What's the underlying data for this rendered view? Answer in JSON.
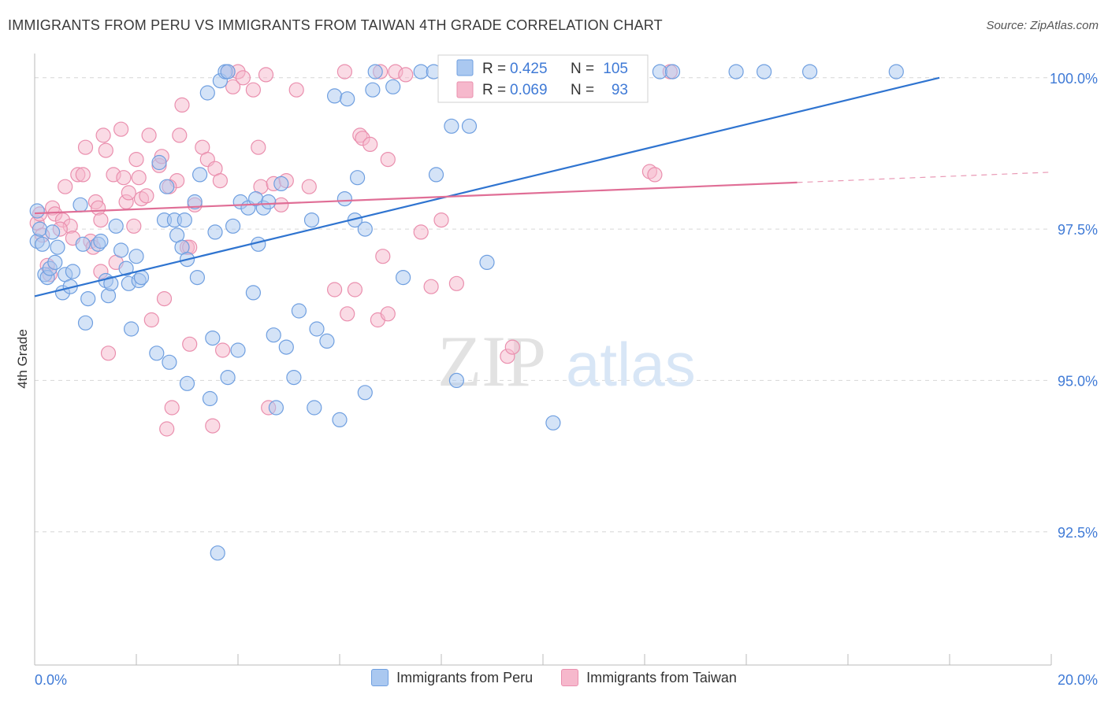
{
  "header": {
    "title": "IMMIGRANTS FROM PERU VS IMMIGRANTS FROM TAIWAN 4TH GRADE CORRELATION CHART",
    "source": "Source: ZipAtlas.com"
  },
  "watermark": {
    "zip": "ZIP",
    "atlas": "atlas"
  },
  "stats": {
    "peru": {
      "r_label": "R =",
      "r_value": "0.425",
      "n_label": "N =",
      "n_value": "105"
    },
    "taiwan": {
      "r_label": "R =",
      "r_value": "0.069",
      "n_label": "N =",
      "n_value": "93"
    }
  },
  "legend": {
    "peru": "Immigrants from Peru",
    "taiwan": "Immigrants from Taiwan"
  },
  "colors": {
    "peru_fill": "#aac8f0",
    "peru_stroke": "#6f9fe0",
    "peru_line": "#2f74d0",
    "taiwan_fill": "#f6b8cc",
    "taiwan_stroke": "#ea8fae",
    "taiwan_line": "#e06e96",
    "axis_text": "#3f7ad6",
    "grid": "#d6d6d6"
  },
  "chart_data": {
    "type": "scatter",
    "title": "IMMIGRANTS FROM PERU VS IMMIGRANTS FROM TAIWAN 4TH GRADE CORRELATION CHART",
    "xlabel": "",
    "ylabel": "4th Grade",
    "xlim": [
      0,
      20
    ],
    "ylim": [
      90.3,
      100.4
    ],
    "x_tick_labels": [
      "0.0%",
      "20.0%"
    ],
    "y_ticks": [
      {
        "value": 92.5,
        "label": "92.5%"
      },
      {
        "value": 95.0,
        "label": "95.0%"
      },
      {
        "value": 97.5,
        "label": "97.5%"
      },
      {
        "value": 100.0,
        "label": "100.0%"
      }
    ],
    "grid": "horizontal dashed",
    "legend_position": "bottom",
    "series": [
      {
        "name": "Immigrants from Peru",
        "trend": {
          "x": [
            0.0,
            17.8
          ],
          "y": [
            96.39,
            100.0
          ]
        },
        "points": [
          [
            0.05,
            97.8
          ],
          [
            0.05,
            97.3
          ],
          [
            0.1,
            97.5
          ],
          [
            0.15,
            97.25
          ],
          [
            0.2,
            96.75
          ],
          [
            0.25,
            96.7
          ],
          [
            0.3,
            96.85
          ],
          [
            0.35,
            97.45
          ],
          [
            0.4,
            96.95
          ],
          [
            0.45,
            97.2
          ],
          [
            0.55,
            96.45
          ],
          [
            0.6,
            96.75
          ],
          [
            0.7,
            96.55
          ],
          [
            0.75,
            96.8
          ],
          [
            0.95,
            97.25
          ],
          [
            0.9,
            97.9
          ],
          [
            1.05,
            96.35
          ],
          [
            1.0,
            95.95
          ],
          [
            1.25,
            97.25
          ],
          [
            1.3,
            97.3
          ],
          [
            1.4,
            96.65
          ],
          [
            1.45,
            96.4
          ],
          [
            1.5,
            96.6
          ],
          [
            1.6,
            97.55
          ],
          [
            1.7,
            97.15
          ],
          [
            1.8,
            96.85
          ],
          [
            1.85,
            96.6
          ],
          [
            1.9,
            95.85
          ],
          [
            2.0,
            97.05
          ],
          [
            2.05,
            96.65
          ],
          [
            2.1,
            96.7
          ],
          [
            2.4,
            95.45
          ],
          [
            2.45,
            98.6
          ],
          [
            2.55,
            97.65
          ],
          [
            2.6,
            98.2
          ],
          [
            2.65,
            95.3
          ],
          [
            2.75,
            97.65
          ],
          [
            2.8,
            97.4
          ],
          [
            2.9,
            97.2
          ],
          [
            3.0,
            97.0
          ],
          [
            2.95,
            97.65
          ],
          [
            3.0,
            94.95
          ],
          [
            3.15,
            97.95
          ],
          [
            3.2,
            96.7
          ],
          [
            3.25,
            98.4
          ],
          [
            3.4,
            99.75
          ],
          [
            3.45,
            94.7
          ],
          [
            3.5,
            95.7
          ],
          [
            3.55,
            97.45
          ],
          [
            3.6,
            92.15
          ],
          [
            3.65,
            99.95
          ],
          [
            3.75,
            100.1
          ],
          [
            3.8,
            95.05
          ],
          [
            3.9,
            97.55
          ],
          [
            4.0,
            95.5
          ],
          [
            4.05,
            97.95
          ],
          [
            4.2,
            97.85
          ],
          [
            4.3,
            96.45
          ],
          [
            4.35,
            98.0
          ],
          [
            4.5,
            97.85
          ],
          [
            4.4,
            97.25
          ],
          [
            4.6,
            97.95
          ],
          [
            4.7,
            95.75
          ],
          [
            4.75,
            94.55
          ],
          [
            4.85,
            98.25
          ],
          [
            4.95,
            95.55
          ],
          [
            5.1,
            95.05
          ],
          [
            5.2,
            96.15
          ],
          [
            5.45,
            97.65
          ],
          [
            5.5,
            94.55
          ],
          [
            5.55,
            95.85
          ],
          [
            5.75,
            95.65
          ],
          [
            5.9,
            99.7
          ],
          [
            6.0,
            94.35
          ],
          [
            6.1,
            98.0
          ],
          [
            6.15,
            99.65
          ],
          [
            6.3,
            97.65
          ],
          [
            6.35,
            98.35
          ],
          [
            6.5,
            97.5
          ],
          [
            6.5,
            94.8
          ],
          [
            6.65,
            99.8
          ],
          [
            6.7,
            100.1
          ],
          [
            7.05,
            99.85
          ],
          [
            7.25,
            96.7
          ],
          [
            7.6,
            100.1
          ],
          [
            7.85,
            100.1
          ],
          [
            7.9,
            98.4
          ],
          [
            8.2,
            99.2
          ],
          [
            8.3,
            95.0
          ],
          [
            8.55,
            99.2
          ],
          [
            8.9,
            96.95
          ],
          [
            9.1,
            100.1
          ],
          [
            10.05,
            100.1
          ],
          [
            10.3,
            100.1
          ],
          [
            10.5,
            100.1
          ],
          [
            9.5,
            100.1
          ],
          [
            11.15,
            100.1
          ],
          [
            12.3,
            100.1
          ],
          [
            12.55,
            100.1
          ],
          [
            13.8,
            100.1
          ],
          [
            14.35,
            100.1
          ],
          [
            15.25,
            100.1
          ],
          [
            16.95,
            100.1
          ],
          [
            10.2,
            94.3
          ],
          [
            3.8,
            100.1
          ]
        ]
      },
      {
        "name": "Immigrants from Taiwan",
        "trend": {
          "x": [
            0.0,
            15.0
          ],
          "y": [
            97.76,
            98.27
          ]
        },
        "trend_dashed": {
          "x": [
            15.0,
            20.0
          ],
          "y": [
            98.27,
            98.44
          ]
        },
        "points": [
          [
            0.05,
            97.6
          ],
          [
            0.1,
            97.75
          ],
          [
            0.15,
            97.4
          ],
          [
            0.25,
            96.9
          ],
          [
            0.3,
            96.75
          ],
          [
            0.35,
            97.85
          ],
          [
            0.4,
            97.75
          ],
          [
            0.55,
            97.65
          ],
          [
            0.6,
            98.2
          ],
          [
            0.7,
            97.55
          ],
          [
            0.75,
            97.35
          ],
          [
            0.85,
            98.4
          ],
          [
            0.95,
            98.4
          ],
          [
            1.0,
            98.85
          ],
          [
            1.1,
            97.3
          ],
          [
            1.15,
            97.2
          ],
          [
            1.2,
            97.95
          ],
          [
            1.25,
            97.85
          ],
          [
            1.3,
            97.65
          ],
          [
            1.35,
            99.05
          ],
          [
            1.3,
            96.8
          ],
          [
            1.4,
            98.8
          ],
          [
            1.45,
            95.45
          ],
          [
            1.55,
            98.4
          ],
          [
            1.6,
            96.95
          ],
          [
            1.7,
            99.15
          ],
          [
            1.75,
            98.35
          ],
          [
            1.8,
            97.95
          ],
          [
            1.85,
            98.1
          ],
          [
            1.95,
            97.55
          ],
          [
            2.0,
            98.65
          ],
          [
            2.05,
            98.35
          ],
          [
            2.1,
            98.0
          ],
          [
            2.2,
            98.05
          ],
          [
            2.25,
            99.05
          ],
          [
            2.3,
            96.0
          ],
          [
            2.45,
            98.55
          ],
          [
            2.5,
            98.7
          ],
          [
            2.55,
            96.35
          ],
          [
            2.6,
            94.2
          ],
          [
            2.7,
            94.55
          ],
          [
            2.8,
            98.3
          ],
          [
            2.85,
            99.05
          ],
          [
            2.9,
            99.55
          ],
          [
            3.0,
            97.2
          ],
          [
            3.05,
            95.6
          ],
          [
            3.15,
            97.9
          ],
          [
            3.3,
            98.85
          ],
          [
            3.4,
            98.65
          ],
          [
            3.5,
            94.25
          ],
          [
            3.55,
            98.5
          ],
          [
            3.65,
            98.3
          ],
          [
            3.7,
            95.5
          ],
          [
            3.8,
            100.1
          ],
          [
            3.9,
            99.85
          ],
          [
            4.0,
            100.1
          ],
          [
            4.1,
            100.0
          ],
          [
            4.3,
            99.8
          ],
          [
            4.4,
            98.85
          ],
          [
            4.45,
            98.2
          ],
          [
            4.55,
            100.05
          ],
          [
            4.6,
            94.55
          ],
          [
            4.7,
            98.25
          ],
          [
            4.85,
            97.9
          ],
          [
            4.95,
            98.3
          ],
          [
            5.15,
            99.8
          ],
          [
            5.4,
            98.2
          ],
          [
            5.9,
            96.5
          ],
          [
            6.1,
            100.1
          ],
          [
            6.15,
            96.1
          ],
          [
            6.3,
            96.5
          ],
          [
            6.4,
            99.05
          ],
          [
            6.45,
            99.0
          ],
          [
            6.6,
            98.9
          ],
          [
            6.75,
            96.0
          ],
          [
            6.85,
            97.05
          ],
          [
            6.95,
            98.65
          ],
          [
            6.95,
            96.1
          ],
          [
            7.1,
            100.1
          ],
          [
            7.6,
            97.45
          ],
          [
            7.8,
            96.55
          ],
          [
            8.0,
            97.65
          ],
          [
            8.3,
            96.6
          ],
          [
            9.3,
            95.4
          ],
          [
            9.4,
            95.55
          ],
          [
            12.1,
            98.45
          ],
          [
            12.2,
            98.4
          ],
          [
            12.5,
            100.1
          ],
          [
            6.8,
            100.1
          ],
          [
            7.3,
            100.05
          ],
          [
            0.5,
            97.5
          ],
          [
            2.65,
            98.2
          ],
          [
            3.05,
            97.2
          ]
        ]
      }
    ]
  }
}
